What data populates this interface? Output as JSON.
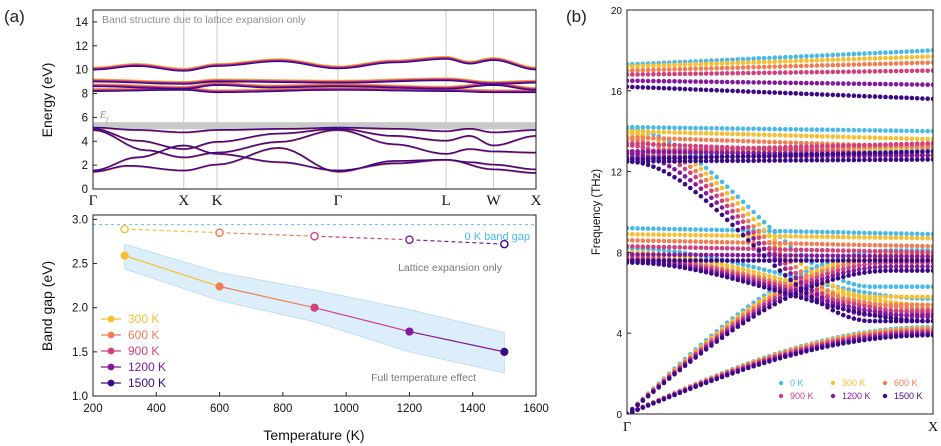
{
  "panel_labels": [
    "(a)",
    "(b)"
  ],
  "colors": {
    "t0": "#48b9e9",
    "t300": "#f7be2e",
    "t600": "#ef7e55",
    "t900": "#d0417c",
    "t1200": "#84199c",
    "t1500": "#3a0a85",
    "grid": "#bdbdbd",
    "fermi": "#c9c9c9",
    "band_shade": "#dceef9"
  },
  "chart_data": [
    {
      "id": "band-structure",
      "type": "line",
      "title": "Band structure due to lattice expansion only",
      "ylabel": "Energy (eV)",
      "ylim": [
        0,
        15
      ],
      "yticks": [
        0,
        2,
        4,
        6,
        8,
        10,
        12,
        14
      ],
      "fermi_label": "E_f",
      "fermi_energy": 5.3,
      "kpath": [
        {
          "label": "Γ",
          "pos": 0.0
        },
        {
          "label": "X",
          "pos": 0.205
        },
        {
          "label": "K",
          "pos": 0.28
        },
        {
          "label": "Γ",
          "pos": 0.553
        },
        {
          "label": "L",
          "pos": 0.797
        },
        {
          "label": "W",
          "pos": 0.904
        },
        {
          "label": "X",
          "pos": 1.0
        }
      ],
      "temperatures": [
        "300 K",
        "600 K",
        "900 K",
        "1200 K",
        "1500 K"
      ],
      "band_shift_eV": [
        0.0,
        -0.05,
        -0.1,
        -0.15,
        -0.21
      ]
    },
    {
      "id": "band-gap",
      "type": "line",
      "xlabel": "Temperature (K)",
      "ylabel": "Band gap (eV)",
      "xlim": [
        200,
        1600
      ],
      "ylim": [
        1.0,
        3.05
      ],
      "xticks": [
        200,
        400,
        600,
        800,
        1000,
        1200,
        1400,
        1600
      ],
      "yticks": [
        1.0,
        1.5,
        2.0,
        2.5,
        3.0
      ],
      "reference_gap": {
        "label": "0 K band gap",
        "value": 2.94
      },
      "series": [
        {
          "name": "Lattice expansion only",
          "style": "dashed-open",
          "x": [
            300,
            600,
            900,
            1200,
            1500
          ],
          "values": [
            2.89,
            2.85,
            2.81,
            2.77,
            2.72
          ]
        },
        {
          "name": "Full temperature effect",
          "style": "solid-filled",
          "x": [
            300,
            600,
            900,
            1200,
            1500
          ],
          "values": [
            2.59,
            2.24,
            2.0,
            1.73,
            1.5
          ]
        }
      ],
      "uncertainty_band": {
        "x": [
          300,
          600,
          900,
          1200,
          1500
        ],
        "lower": [
          2.44,
          2.08,
          1.84,
          1.5,
          1.26
        ],
        "upper": [
          2.72,
          2.4,
          2.2,
          1.98,
          1.72
        ]
      },
      "legend": [
        "300 K",
        "600 K",
        "900 K",
        "1200 K",
        "1500 K"
      ],
      "legend_position": "bottom-left"
    },
    {
      "id": "phonon-dispersion",
      "type": "scatter",
      "ylabel": "Frequency (THz)",
      "ylim": [
        0,
        20
      ],
      "yticks": [
        0,
        4,
        8,
        12,
        16,
        20
      ],
      "kpath": [
        {
          "label": "Γ",
          "pos": 0.0
        },
        {
          "label": "X",
          "pos": 1.0
        }
      ],
      "legend": [
        "0 K",
        "300 K",
        "600 K",
        "900 K",
        "1200 K",
        "1500 K"
      ],
      "legend_position": "bottom-right",
      "series": [
        {
          "name": "0 K",
          "top": [
            17.3,
            18.0
          ],
          "high_flat": [
            14.2,
            14.0
          ],
          "high_cross": [
            14.1,
            6.3
          ],
          "high_low": [
            12.8,
            13.1
          ],
          "mid_flat": [
            9.2,
            8.9
          ],
          "mid_rise": [
            8.2,
            5.7
          ],
          "la_end": 8.1,
          "ta_end": 4.3
        },
        {
          "name": "300 K",
          "top": [
            17.2,
            17.7
          ],
          "high_flat": [
            14.0,
            13.6
          ],
          "high_cross": [
            13.9,
            5.8
          ],
          "high_low": [
            12.9,
            13.2
          ],
          "mid_flat": [
            8.9,
            8.7
          ],
          "mid_rise": [
            8.0,
            5.4
          ],
          "la_end": 7.9,
          "ta_end": 4.25
        },
        {
          "name": "600 K",
          "top": [
            17.0,
            17.4
          ],
          "high_flat": [
            13.7,
            13.2
          ],
          "high_cross": [
            13.6,
            5.4
          ],
          "high_low": [
            12.9,
            13.3
          ],
          "mid_flat": [
            8.6,
            8.3
          ],
          "mid_rise": [
            7.8,
            5.2
          ],
          "la_end": 7.7,
          "ta_end": 4.2
        },
        {
          "name": "900 K",
          "top": [
            16.8,
            17.0
          ],
          "high_flat": [
            13.4,
            12.8
          ],
          "high_cross": [
            13.3,
            5.1
          ],
          "high_low": [
            13.0,
            13.4
          ],
          "mid_flat": [
            8.3,
            8.0
          ],
          "mid_rise": [
            7.7,
            5.0
          ],
          "la_end": 7.5,
          "ta_end": 4.1
        },
        {
          "name": "1200 K",
          "top": [
            16.5,
            16.3
          ],
          "high_flat": [
            13.0,
            12.8
          ],
          "high_cross": [
            12.9,
            4.9
          ],
          "high_low": [
            12.7,
            12.8
          ],
          "mid_flat": [
            7.9,
            7.8
          ],
          "mid_rise": [
            7.6,
            4.8
          ],
          "la_end": 7.3,
          "ta_end": 4.0
        },
        {
          "name": "1500 K",
          "top": [
            16.2,
            15.6
          ],
          "high_flat": [
            12.6,
            13.0
          ],
          "high_cross": [
            12.5,
            4.6
          ],
          "high_low": [
            12.5,
            12.6
          ],
          "mid_flat": [
            7.6,
            7.6
          ],
          "mid_rise": [
            7.5,
            4.6
          ],
          "la_end": 7.1,
          "ta_end": 3.9
        }
      ]
    }
  ]
}
